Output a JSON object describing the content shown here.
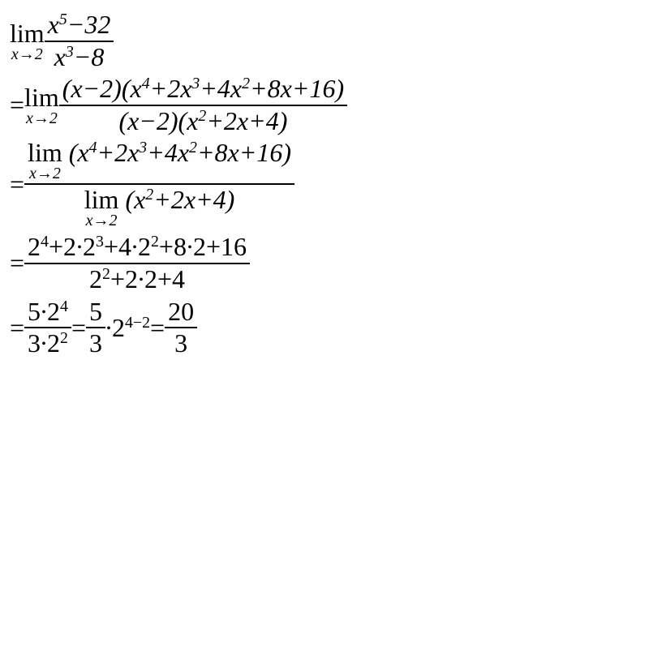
{
  "math": {
    "line1": {
      "lim_top": "lim",
      "lim_bot": "x→2",
      "num": "x<sup>5</sup>−32",
      "den": "x<sup>3</sup>−8"
    },
    "line2": {
      "eq": "=",
      "lim_top": "lim",
      "lim_bot": "x→2",
      "num": "(x−2)(x<sup>4</sup>+2x<sup>3</sup>+4x<sup>2</sup>+8x+16)",
      "den": "(x−2)(x<sup>2</sup>+2x+4)"
    },
    "line3": {
      "eq": "=",
      "num_lim_top": "lim",
      "num_lim_bot": "x→2",
      "num_rest": "(x<sup>4</sup>+2x<sup>3</sup>+4x<sup>2</sup>+8x+16)",
      "den_lim_top": "lim",
      "den_lim_bot": "x→2",
      "den_rest": "(x<sup>2</sup>+2x+4)"
    },
    "line4": {
      "eq": "=",
      "num": "2<sup>4</sup>+2∙2<sup>3</sup>+4∙2<sup>2</sup>+8∙2+16",
      "den": "2<sup>2</sup>+2∙2+4"
    },
    "line5": {
      "eq1": "=",
      "f1_num": "5∙2<sup>4</sup>",
      "f1_den": "3∙2<sup>2</sup>",
      "eq2": "=",
      "f2_num": "5",
      "f2_den": "3",
      "mid": "∙2<sup>4−2</sup>",
      "eq3": "=",
      "f3_num": "20",
      "f3_den": "3"
    }
  }
}
